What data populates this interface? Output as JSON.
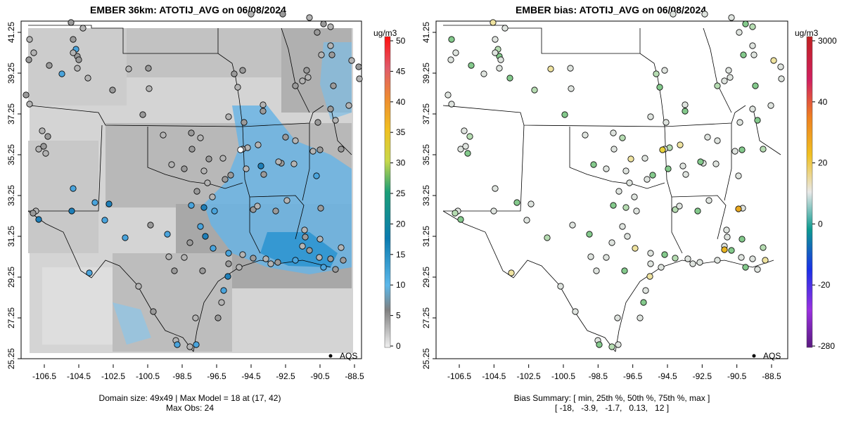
{
  "left": {
    "title": "EMBER 36km: ATOTIJ_AVG on 06/08/2024",
    "footer_line1": "Domain size: 49x49 | Max Model = 18 at (17, 42)",
    "footer_line2": "Max Obs: 24",
    "units": "ug/m3",
    "colorbar_labels": [
      "50",
      "45",
      "40",
      "35",
      "30",
      "25",
      "20",
      "15",
      "10",
      "5",
      "0"
    ],
    "legend": "AQS"
  },
  "right": {
    "title": "EMBER bias: ATOTIJ_AVG on 06/08/2024",
    "footer_line1": "Bias Summary: [ min, 25th %, 50th %, 75th %, max ]",
    "footer_line2": "[ -18,   -3.9,   -1.7,   0.13,   12 ]",
    "units": "ug/m3",
    "colorbar_labels": [
      "3000",
      "40",
      "20",
      "0",
      "-20",
      "-280"
    ],
    "legend": "AQS"
  },
  "axes": {
    "lon_ticks": [
      "-106.5",
      "-104.5",
      "-102.5",
      "-100.5",
      "-98.5",
      "-96.5",
      "-94.5",
      "-92.5",
      "-90.5",
      "-88.5"
    ],
    "lat_ticks": [
      "41.25",
      "39.25",
      "37.25",
      "35.25",
      "33.25",
      "31.25",
      "29.25",
      "27.25",
      "25.25"
    ]
  },
  "colors": {
    "model_bg_light": "#d8d8d8",
    "model_bg_mid": "#b8b8b8",
    "plume_blue": "#4aa8e0",
    "plume_deep": "#1e88c8",
    "bias_green": "#6fc07a",
    "bias_light": "#e0e6e0"
  }
}
